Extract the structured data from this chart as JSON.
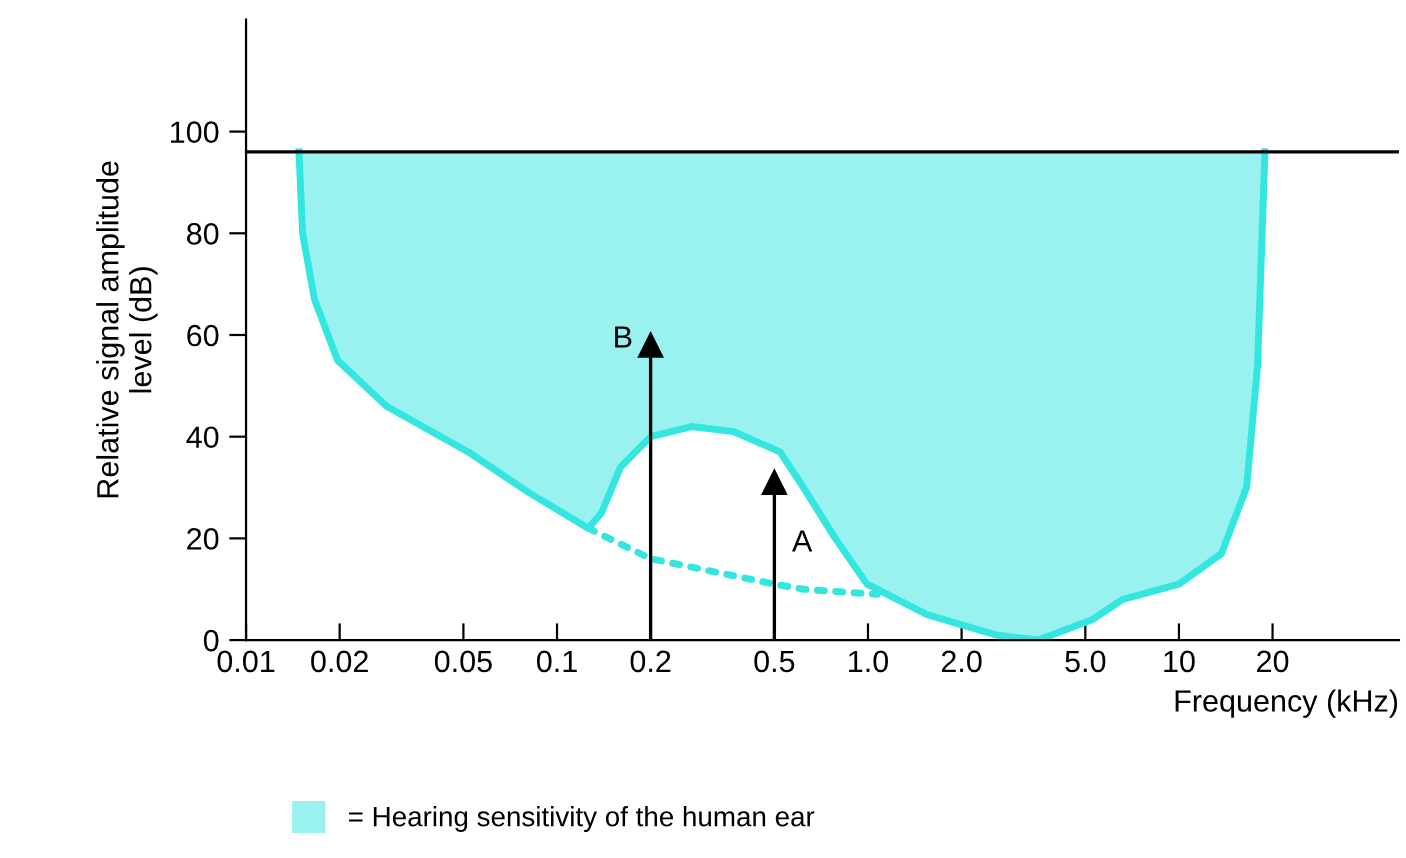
{
  "chart_data": {
    "type": "line",
    "xlabel": "Frequency (kHz)",
    "ylabel": "Relative signal amplitude\nlevel (dB)",
    "xlim": [
      0.01,
      51
    ],
    "ylim": [
      0,
      122
    ],
    "xticks": [
      0.01,
      0.02,
      0.05,
      0.1,
      0.2,
      0.5,
      {
        "value": 1,
        "label": "1.0"
      },
      {
        "value": 2,
        "label": "2.0"
      },
      {
        "value": 5,
        "label": "5.0"
      },
      10,
      20
    ],
    "yticks": [
      0,
      20,
      40,
      60,
      80,
      100
    ],
    "grid": false,
    "legend": "bottom left",
    "log": "x",
    "ref_lines": [
      {
        "axis": "y",
        "value": 96,
        "color": "#000000"
      }
    ],
    "series": [
      {
        "name": "= Hearing sensitivity of the human ear",
        "color": "#33e6e0",
        "x": [
          0.0148,
          0.0152,
          0.0166,
          0.0197,
          0.0283,
          0.0518,
          0.0812,
          0.126,
          0.139,
          0.16,
          0.2,
          0.271,
          0.37,
          0.521,
          0.62,
          0.785,
          0.993,
          1.55,
          2.58,
          3.53,
          5.25,
          6.6,
          10,
          13.7,
          16.5,
          17.9,
          18.9
        ],
        "values": [
          96,
          80,
          67,
          55,
          46,
          37,
          29,
          22,
          25,
          34,
          40,
          42,
          41,
          37,
          30,
          20,
          11,
          5,
          1,
          0,
          4,
          8,
          11,
          17,
          30,
          54,
          96
        ],
        "lower": [
          96,
          80,
          67,
          55,
          46,
          37,
          29,
          22,
          25,
          34,
          40,
          42,
          41,
          37,
          30,
          20,
          11,
          5,
          1,
          0,
          4,
          8,
          11,
          17,
          30,
          54,
          96
        ],
        "upper": [
          96,
          96,
          96,
          96,
          96,
          96,
          96,
          96,
          96,
          96,
          96,
          96,
          96,
          96,
          96,
          96,
          96,
          96,
          96,
          96,
          96,
          96,
          96,
          96,
          96,
          96,
          96
        ]
      },
      {
        "color": "#33e6e0",
        "line_style": "dotted",
        "x": [
          0.126,
          0.2,
          0.5,
          0.62,
          1.07
        ],
        "values": [
          22,
          16,
          11,
          10,
          9
        ]
      },
      {
        "type": "lollipop",
        "color": "#000000",
        "marker": "triangle",
        "x": [
          0.2,
          0.5
        ],
        "values": [
          58,
          31
        ]
      }
    ],
    "annotations": [
      {
        "text": "B",
        "x": 0.2,
        "y": 58
      },
      {
        "text": "A",
        "x": 0.5,
        "y": 31
      }
    ]
  }
}
